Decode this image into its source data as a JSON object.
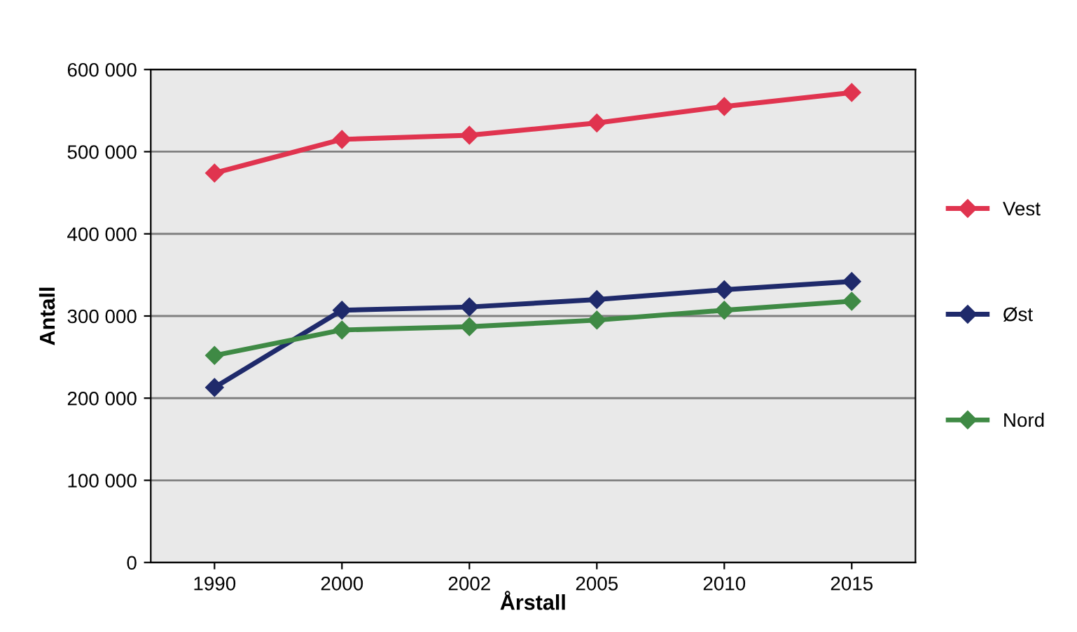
{
  "chart_data": {
    "type": "line",
    "xlabel": "Årstall",
    "ylabel": "Antall",
    "categories": [
      "1990",
      "2000",
      "2002",
      "2005",
      "2010",
      "2015"
    ],
    "series": [
      {
        "name": "Vest",
        "color": "#e0344f",
        "values": [
          474000,
          515000,
          520000,
          535000,
          555000,
          572000
        ]
      },
      {
        "name": "Øst",
        "color": "#1f2a6b",
        "values": [
          213000,
          307000,
          311000,
          320000,
          332000,
          342000
        ]
      },
      {
        "name": "Nord",
        "color": "#3f8a45",
        "values": [
          252000,
          283000,
          287000,
          295000,
          307000,
          318000
        ]
      }
    ],
    "ylim": [
      0,
      600000
    ],
    "yticks": [
      0,
      {
        "value": 100000,
        "label": "100 000"
      },
      {
        "value": 200000,
        "label": "200 000"
      },
      {
        "value": 300000,
        "label": "300 000"
      },
      {
        "value": 400000,
        "label": "400 000"
      },
      {
        "value": 500000,
        "label": "500 000"
      },
      {
        "value": 600000,
        "label": "600 000"
      }
    ],
    "grid": "y",
    "legend": "right",
    "marker": "diamond",
    "line_style": "solid"
  }
}
